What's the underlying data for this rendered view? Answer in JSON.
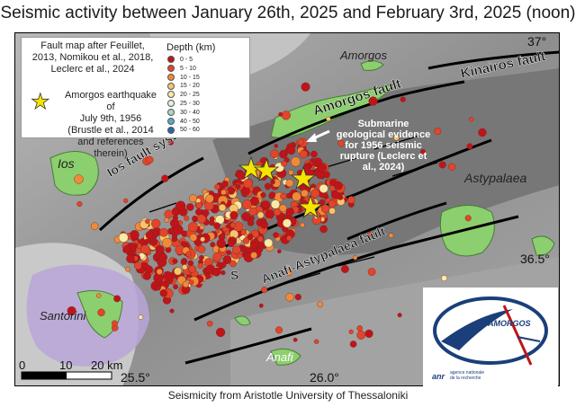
{
  "title": "Seismic activity between January 26th, 2025 and February 3rd, 2025 (noon)",
  "footer": "Seismicity from Aristotle University of Thessaloniki",
  "legend": {
    "source_lines": [
      "Fault map after Feuillet,",
      "2013, Nomikou et al., 2018,",
      "Leclerc et al., 2024"
    ],
    "depth_title": "Depth (km)",
    "depth_classes": [
      {
        "label": "0 - 5",
        "color": "#c0141a"
      },
      {
        "label": "5 - 10",
        "color": "#e2452b"
      },
      {
        "label": "10 - 15",
        "color": "#f08a3a"
      },
      {
        "label": "15 - 20",
        "color": "#f7c56b"
      },
      {
        "label": "20 - 25",
        "color": "#fbe9a5"
      },
      {
        "label": "25 - 30",
        "color": "#e4f2d8"
      },
      {
        "label": "30 - 40",
        "color": "#a9d7c6"
      },
      {
        "label": "40 - 50",
        "color": "#5aa8c8"
      },
      {
        "label": "50 - 60",
        "color": "#2c65a8"
      }
    ],
    "earthquake_lines": [
      "Amorgos earthquake of",
      "July 9th, 1956",
      "(Brustle et al., 2014",
      "and references therein)"
    ]
  },
  "places": {
    "amorgos": "Amorgos",
    "ios": "Ios",
    "astypalaea": "Astypalaea",
    "santorini": "Santorini",
    "anafi": "Anafi"
  },
  "faults": {
    "kinairos": "Kinairos fault",
    "amorgos": "Amorgos fault",
    "ios": "Ios fault system",
    "santorini_amorgos": "S",
    "anafi_astypalaea": "Anafi-Astypalaea fault"
  },
  "annotation_lines": [
    "Submarine",
    "geological evidence",
    "for 1956 seismic",
    "rupture (Leclerc et",
    "al., 2024)"
  ],
  "coordinates": {
    "lat_37": "37°",
    "lat_365": "36.5°",
    "lon_255": "25.5°",
    "lon_26": "26.0°"
  },
  "scale": {
    "labels": [
      "0",
      "10",
      "20 km"
    ]
  },
  "logo": {
    "name": "AMORGOS",
    "agency": "anr",
    "agency_sub": [
      "agence nationale",
      "de la recherche"
    ]
  },
  "colors": {
    "sea": "#8f8f8f",
    "sea_deep": "#6f6f6f",
    "land": "#8ccf6e",
    "caldera": "#b8a6d8",
    "fault": "#000000",
    "star": "#f5e400",
    "logo_blue": "#1a3f7a",
    "logo_red": "#c0141a"
  }
}
